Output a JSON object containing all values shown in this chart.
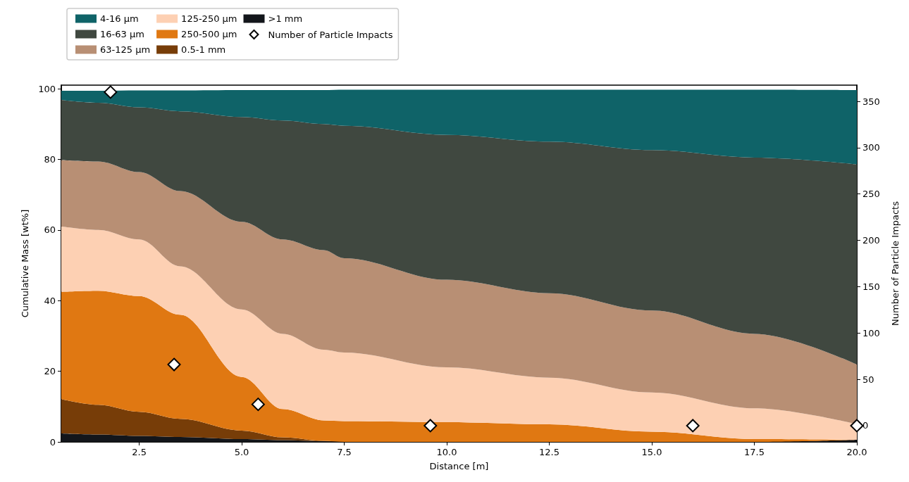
{
  "chart_data": {
    "type": "area",
    "stacked": true,
    "xlabel": "Distance [m]",
    "ylabel": "Cumulative Mass [wt%]",
    "y2label": "Number of Particle Impacts",
    "x": [
      0.6,
      1.5,
      2.5,
      3.5,
      5,
      6,
      7,
      7.5,
      10,
      12.5,
      15,
      17.5,
      20
    ],
    "xlim": [
      0.6,
      20
    ],
    "xticks": [
      {
        "value": 2.5,
        "label": "2.5"
      },
      {
        "value": 5,
        "label": "5.0"
      },
      {
        "value": 7.5,
        "label": "7.5"
      },
      {
        "value": 10,
        "label": "10.0"
      },
      {
        "value": 12.5,
        "label": "12.5"
      },
      {
        "value": 15,
        "label": "15.0"
      },
      {
        "value": 17.5,
        "label": "17.5"
      },
      {
        "value": 20,
        "label": "20.0"
      }
    ],
    "ylim": [
      0,
      101
    ],
    "yticks": [
      0,
      20,
      40,
      60,
      80,
      100
    ],
    "y2lim": [
      -17.5,
      367.5
    ],
    "y2ticks": [
      0,
      50,
      100,
      150,
      200,
      250,
      300,
      350
    ],
    "grid": false,
    "legend": "top left",
    "series": [
      {
        "name": ">1 mm",
        "color": "#13161b",
        "values": [
          2.4,
          2.1,
          1.7,
          1.4,
          0.8,
          0.5,
          0.2,
          0,
          0,
          0,
          0,
          0,
          0.6
        ]
      },
      {
        "name": "0.5-1 mm",
        "color": "#773d08",
        "values": [
          9.7,
          8.4,
          6.8,
          5.1,
          2.4,
          0.8,
          0.1,
          0,
          0,
          0,
          0,
          0,
          0
        ]
      },
      {
        "name": "250-500 μm",
        "color": "#e07812",
        "values": [
          30.4,
          32.3,
          32.8,
          29.5,
          15.2,
          8.0,
          5.8,
          5.9,
          5.6,
          5.0,
          2.9,
          0.8,
          0
        ]
      },
      {
        "name": "125-250 μm",
        "color": "#fdd0b3",
        "values": [
          18.5,
          17.2,
          16.0,
          13.7,
          19.1,
          21.3,
          20.0,
          19.4,
          15.5,
          13.2,
          11.1,
          8.7,
          4.4
        ]
      },
      {
        "name": "63-125 μm",
        "color": "#b88f74",
        "values": [
          18.8,
          19.4,
          19.1,
          21.3,
          24.8,
          26.7,
          28.2,
          26.7,
          24.8,
          23.9,
          23.2,
          21.1,
          16.9
        ]
      },
      {
        "name": "16-63 μm",
        "color": "#404840",
        "values": [
          17.0,
          16.6,
          18.3,
          22.6,
          29.7,
          33.7,
          35.7,
          37.5,
          41.0,
          42.9,
          45.4,
          49.9,
          56.7
        ]
      },
      {
        "name": "4-16 μm",
        "color": "#0f6368",
        "values": [
          2.6,
          3.4,
          4.8,
          5.9,
          7.6,
          8.6,
          9.6,
          10.2,
          12.8,
          14.7,
          17.1,
          19.2,
          21.0
        ]
      },
      {
        "name": "Number of Particle Impacts",
        "type": "scatter",
        "axis": "y2",
        "marker": "diamond",
        "color": "#ffffff",
        "x": [
          1.8,
          3.35,
          5.4,
          9.6,
          16,
          20
        ],
        "values": [
          360,
          66,
          23,
          0,
          0,
          0
        ]
      }
    ]
  }
}
